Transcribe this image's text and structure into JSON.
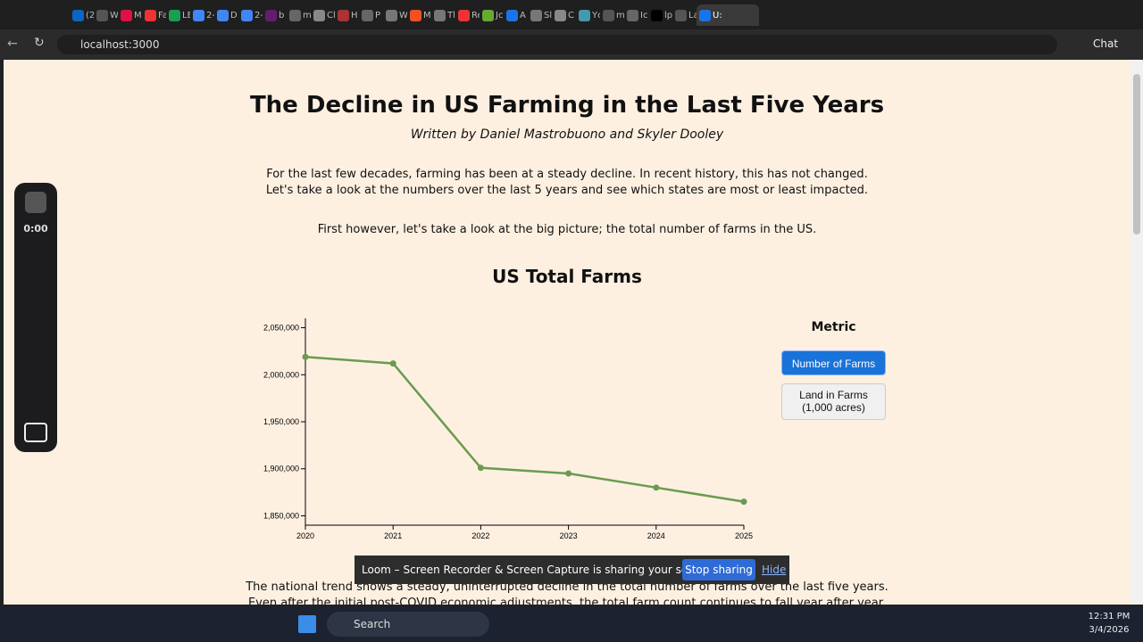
{
  "browser": {
    "tabs": [
      "(2",
      "W",
      "M",
      "Fa",
      "LE",
      "2-",
      "D",
      "2-",
      "b",
      "m",
      "Cl",
      "H",
      "P",
      "W",
      "M",
      "Tl",
      "Re",
      "Jc",
      "A",
      "Sl",
      "C",
      "Yc",
      "m",
      "Ic",
      "lp",
      "La"
    ],
    "active_tab": "U:",
    "url": "localhost:3000",
    "chat": "Chat"
  },
  "recorder": {
    "timer": "0:00"
  },
  "page": {
    "title": "The Decline in US Farming in the Last Five Years",
    "byline": "Written by Daniel Mastrobuono and Skyler Dooley",
    "intro": [
      "For the last few decades, farming has been at a steady decline. In recent history, this has not changed.",
      "Let's take a look at the numbers over the last 5 years and see which states are most or least impacted."
    ],
    "lead": "First however, let's take a look at the big picture; the total number of farms in the US.",
    "outro": [
      "The national trend shows a steady, uninterrupted decline in the total number of farms over the last five years.",
      "Even after the initial post-COVID economic adjustments, the total farm count continues to fall year after year."
    ]
  },
  "chart_data": {
    "type": "line",
    "title": "US Total Farms",
    "x": [
      2020,
      2021,
      2022,
      2023,
      2024,
      2025
    ],
    "values": [
      2019000,
      2012000,
      1901000,
      1895000,
      1880000,
      1865000
    ],
    "color": "#6a9b50",
    "xlim": [
      2020,
      2025
    ],
    "xticks": [
      2020,
      2021,
      2022,
      2023,
      2024,
      2025
    ],
    "ylim": [
      1840000,
      2060000
    ],
    "yticks": [
      {
        "value": 1850000,
        "label": "1,850,000"
      },
      {
        "value": 1900000,
        "label": "1,900,000"
      },
      {
        "value": 1950000,
        "label": "1,950,000"
      },
      {
        "value": 2000000,
        "label": "2,000,000"
      },
      {
        "value": 2050000,
        "label": "2,050,000"
      }
    ],
    "grid": false
  },
  "metric_panel": {
    "title": "Metric",
    "options": [
      "Number of Farms",
      "Land in Farms (1,000 acres)"
    ]
  },
  "loom_banner": {
    "message": "Loom – Screen Recorder & Screen Capture is sharing your screen.",
    "stop": "Stop sharing",
    "hide": "Hide"
  },
  "taskbar": {
    "search": "Search",
    "time": "12:31 PM",
    "date": "3/4/2026"
  }
}
